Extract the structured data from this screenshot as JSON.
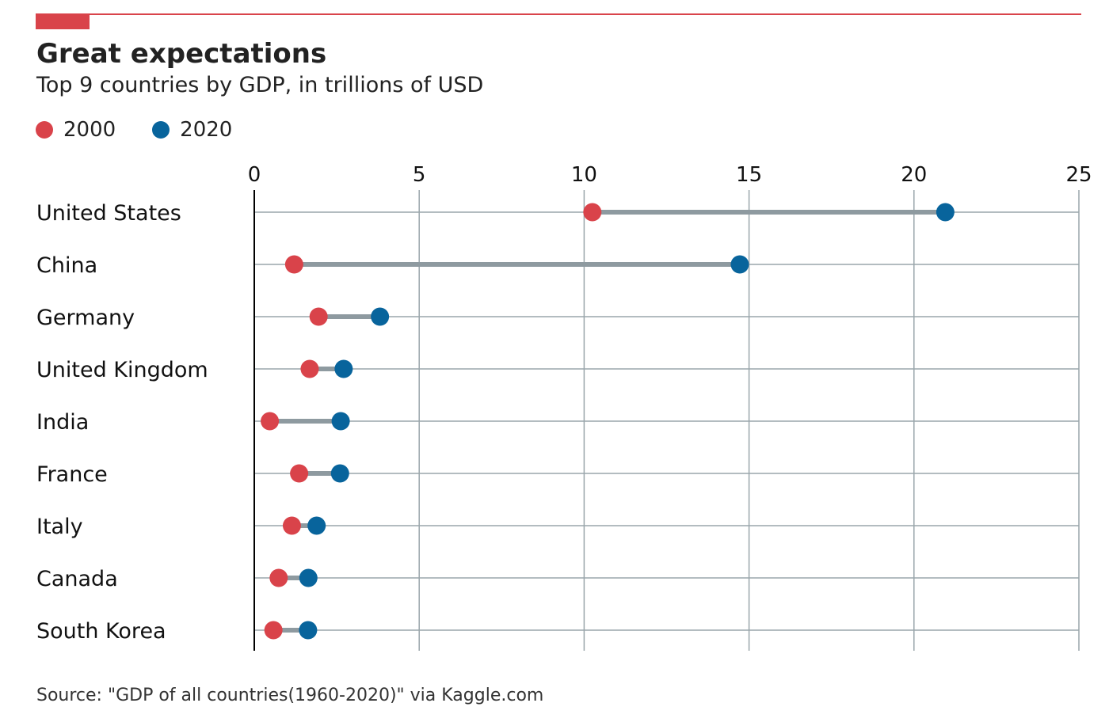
{
  "header": {
    "title": "Great expectations",
    "subtitle": "Top 9 countries by GDP, in trillions of USD"
  },
  "legend": [
    {
      "label": "2000",
      "color": "#d9434a"
    },
    {
      "label": "2020",
      "color": "#08649c"
    }
  ],
  "footer": {
    "source": "Source: \"GDP of all countries(1960-2020)\" via Kaggle.com"
  },
  "colors": {
    "accent": "#d9434a",
    "series_2000": "#d9434a",
    "series_2020": "#08649c",
    "connector": "#8e9aa0",
    "grid": "#9aa6ab",
    "axis": "#000000"
  },
  "chart_data": {
    "type": "scatter",
    "style": "dumbbell",
    "title": "Great expectations",
    "subtitle": "Top 9 countries by GDP, in trillions of USD",
    "xlim": [
      0,
      25
    ],
    "xticks": [
      0,
      5,
      10,
      15,
      20,
      25
    ],
    "xaxis_position": "top",
    "grid": true,
    "legend_position": "top-left",
    "categories": [
      "United States",
      "China",
      "Germany",
      "United Kingdom",
      "India",
      "France",
      "Italy",
      "Canada",
      "South Korea"
    ],
    "series": [
      {
        "name": "2000",
        "color": "#d9434a",
        "values": [
          10.25,
          1.21,
          1.95,
          1.68,
          0.47,
          1.36,
          1.14,
          0.74,
          0.58
        ]
      },
      {
        "name": "2020",
        "color": "#08649c",
        "values": [
          20.95,
          14.72,
          3.81,
          2.71,
          2.62,
          2.6,
          1.89,
          1.64,
          1.63
        ]
      }
    ]
  }
}
